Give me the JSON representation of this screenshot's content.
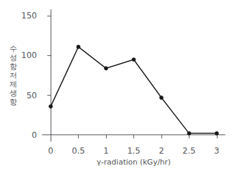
{
  "chart_data": {
    "type": "line",
    "x": [
      0,
      0.5,
      1,
      1.5,
      2,
      2.5,
      3
    ],
    "values": [
      36,
      111,
      84,
      95,
      47,
      2,
      2
    ],
    "xlabel": "γ-radiation (kGy/hr)",
    "ylabel": "수\n성\n항\n저\n제\n생\n항",
    "xlim": [
      -0.15,
      3.15
    ],
    "xticks": [
      0,
      0.5,
      1,
      1.5,
      2,
      2.5,
      3
    ],
    "ylim": [
      -8,
      158
    ],
    "yticks": [
      0,
      50,
      100,
      150
    ],
    "color": "#1a1a1a",
    "marker": "circle",
    "grid": false
  }
}
